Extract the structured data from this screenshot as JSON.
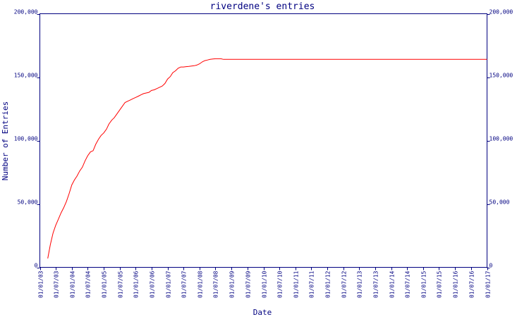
{
  "chart_data": {
    "type": "line",
    "title": "riverdene's entries",
    "xlabel": "Date",
    "ylabel": "Number of Entries",
    "ylim": [
      0,
      200000
    ],
    "y_ticks": [
      0,
      50000,
      100000,
      150000,
      200000
    ],
    "y_tick_labels": [
      "0",
      "50,000",
      "100,000",
      "150,000",
      "200,000"
    ],
    "x_range": [
      "2003-01-01",
      "2017-01-01"
    ],
    "x_ticks": [
      "2003-01-01",
      "2003-07-01",
      "2004-01-01",
      "2004-07-01",
      "2005-01-01",
      "2005-07-01",
      "2006-01-01",
      "2006-07-01",
      "2007-01-01",
      "2007-07-01",
      "2008-01-01",
      "2008-07-01",
      "2009-01-01",
      "2009-07-01",
      "2010-01-01",
      "2010-07-01",
      "2011-01-01",
      "2011-07-01",
      "2012-01-01",
      "2012-07-01",
      "2013-01-01",
      "2013-07-01",
      "2014-01-01",
      "2014-07-01",
      "2015-01-01",
      "2015-07-01",
      "2016-01-01",
      "2016-07-01",
      "2017-01-01"
    ],
    "x_tick_labels": [
      "01/01/03",
      "01/07/03",
      "01/01/04",
      "01/07/04",
      "01/01/05",
      "01/07/05",
      "01/01/06",
      "01/07/06",
      "01/01/07",
      "01/07/07",
      "01/01/08",
      "01/07/08",
      "01/01/09",
      "01/07/09",
      "01/01/10",
      "01/07/10",
      "01/01/11",
      "01/07/11",
      "01/01/12",
      "01/07/12",
      "01/01/13",
      "01/07/13",
      "01/01/14",
      "01/07/14",
      "01/01/15",
      "01/07/15",
      "01/01/16",
      "01/07/16",
      "01/01/17"
    ],
    "grid": false,
    "colors": {
      "axis": "#000080",
      "line": "#ff0000",
      "background": "#ffffff"
    },
    "series": [
      {
        "color": "#ff0000",
        "points": [
          [
            "2003-04-01",
            7000
          ],
          [
            "2003-05-01",
            18000
          ],
          [
            "2003-06-01",
            27000
          ],
          [
            "2003-07-01",
            33000
          ],
          [
            "2003-08-01",
            38000
          ],
          [
            "2003-09-01",
            43000
          ],
          [
            "2003-10-01",
            47000
          ],
          [
            "2003-11-01",
            52000
          ],
          [
            "2003-12-01",
            58000
          ],
          [
            "2004-01-01",
            65000
          ],
          [
            "2004-02-01",
            69000
          ],
          [
            "2004-03-01",
            72000
          ],
          [
            "2004-04-01",
            76000
          ],
          [
            "2004-05-01",
            79000
          ],
          [
            "2004-06-01",
            84000
          ],
          [
            "2004-07-01",
            88000
          ],
          [
            "2004-08-01",
            91000
          ],
          [
            "2004-09-01",
            92000
          ],
          [
            "2004-10-01",
            97000
          ],
          [
            "2004-11-01",
            101000
          ],
          [
            "2004-12-01",
            104000
          ],
          [
            "2005-01-01",
            106000
          ],
          [
            "2005-02-01",
            109000
          ],
          [
            "2005-03-01",
            113000
          ],
          [
            "2005-04-01",
            116000
          ],
          [
            "2005-05-01",
            118000
          ],
          [
            "2005-06-01",
            121000
          ],
          [
            "2005-07-01",
            124000
          ],
          [
            "2005-08-01",
            127000
          ],
          [
            "2005-09-01",
            130000
          ],
          [
            "2005-10-01",
            131000
          ],
          [
            "2005-11-01",
            132000
          ],
          [
            "2005-12-01",
            133000
          ],
          [
            "2006-01-01",
            134000
          ],
          [
            "2006-02-01",
            135000
          ],
          [
            "2006-03-01",
            136000
          ],
          [
            "2006-04-01",
            137000
          ],
          [
            "2006-05-01",
            137500
          ],
          [
            "2006-06-01",
            138000
          ],
          [
            "2006-07-01",
            139500
          ],
          [
            "2006-08-01",
            140000
          ],
          [
            "2006-09-01",
            141000
          ],
          [
            "2006-10-01",
            142000
          ],
          [
            "2006-11-01",
            143000
          ],
          [
            "2006-12-01",
            145000
          ],
          [
            "2007-01-01",
            148500
          ],
          [
            "2007-02-01",
            150500
          ],
          [
            "2007-03-01",
            153500
          ],
          [
            "2007-04-01",
            155000
          ],
          [
            "2007-05-01",
            157000
          ],
          [
            "2007-06-01",
            158000
          ],
          [
            "2007-07-01",
            158000
          ],
          [
            "2007-08-01",
            158300
          ],
          [
            "2007-09-01",
            158500
          ],
          [
            "2007-10-01",
            158800
          ],
          [
            "2007-11-01",
            159000
          ],
          [
            "2007-12-01",
            159500
          ],
          [
            "2008-01-01",
            160500
          ],
          [
            "2008-02-01",
            162000
          ],
          [
            "2008-03-01",
            163000
          ],
          [
            "2008-04-01",
            163500
          ],
          [
            "2008-05-01",
            164000
          ],
          [
            "2008-06-01",
            164300
          ],
          [
            "2008-07-01",
            164500
          ],
          [
            "2008-08-01",
            164500
          ],
          [
            "2008-09-01",
            164500
          ],
          [
            "2008-10-01",
            164000
          ],
          [
            "2010-01-01",
            164000
          ],
          [
            "2012-01-01",
            164000
          ],
          [
            "2014-01-01",
            164000
          ],
          [
            "2017-01-01",
            164000
          ]
        ]
      }
    ]
  }
}
